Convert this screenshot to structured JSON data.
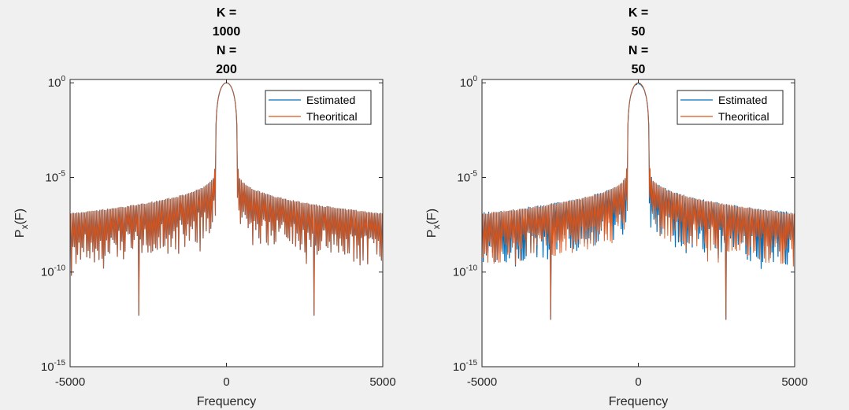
{
  "figure": {
    "background": "#f0f0f0"
  },
  "chart_data": [
    {
      "type": "line",
      "title": [
        "K =",
        "1000",
        "N =",
        "200"
      ],
      "xlabel": "Frequency",
      "ylabel": "P_x(F)",
      "ylabel_parts": {
        "main": "P",
        "sub": "x",
        "tail": "(F)"
      },
      "xlim": [
        -5000,
        5000
      ],
      "ylim": [
        1e-15,
        1.5
      ],
      "yscale": "log",
      "xticks": [
        -5000,
        0,
        5000
      ],
      "xtick_labels": [
        "-5000",
        "0",
        "5000"
      ],
      "yticks": [
        {
          "value": 1,
          "base": "10",
          "exp": "0"
        },
        {
          "value": 1e-05,
          "base": "10",
          "exp": "-5"
        },
        {
          "value": 1e-10,
          "base": "10",
          "exp": "-10"
        },
        {
          "value": 1e-15,
          "base": "10",
          "exp": "-15"
        }
      ],
      "grid": false,
      "legend_position": "top-right",
      "series": [
        {
          "name": "Estimated",
          "color": "#0072bd"
        },
        {
          "name": "Theoritical",
          "color": "#d95319"
        }
      ],
      "signal": {
        "main_lobe_halfwidth": 350,
        "peak": 1.0,
        "sidelobe_spacing": 49,
        "floor_level_at_edges": 1.3e-07,
        "sidelobe_level_near_lobe": 3.2e-05,
        "deep_null_frequencies": [
          -2800,
          2800
        ],
        "deep_null_level": 5e-13,
        "estimate_ripple": 0.01
      }
    },
    {
      "type": "line",
      "title": [
        "K =",
        "50",
        "N =",
        "50"
      ],
      "xlabel": "Frequency",
      "ylabel": "P_x(F)",
      "ylabel_parts": {
        "main": "P",
        "sub": "x",
        "tail": "(F)"
      },
      "xlim": [
        -5000,
        5000
      ],
      "ylim": [
        1e-15,
        1.5
      ],
      "yscale": "log",
      "xticks": [
        -5000,
        0,
        5000
      ],
      "xtick_labels": [
        "-5000",
        "0",
        "5000"
      ],
      "yticks": [
        {
          "value": 1,
          "base": "10",
          "exp": "0"
        },
        {
          "value": 1e-05,
          "base": "10",
          "exp": "-5"
        },
        {
          "value": 1e-10,
          "base": "10",
          "exp": "-10"
        },
        {
          "value": 1e-15,
          "base": "10",
          "exp": "-15"
        }
      ],
      "grid": false,
      "legend_position": "top-right",
      "series": [
        {
          "name": "Estimated",
          "color": "#0072bd"
        },
        {
          "name": "Theoritical",
          "color": "#d95319"
        }
      ],
      "signal": {
        "main_lobe_halfwidth": 350,
        "peak": 1.0,
        "sidelobe_spacing": 49,
        "floor_level_at_edges": 1.3e-07,
        "sidelobe_level_near_lobe": 3.2e-05,
        "deep_null_frequencies": [
          -2800,
          2800
        ],
        "deep_null_level": 3e-13,
        "estimate_ripple": 0.35
      }
    }
  ]
}
